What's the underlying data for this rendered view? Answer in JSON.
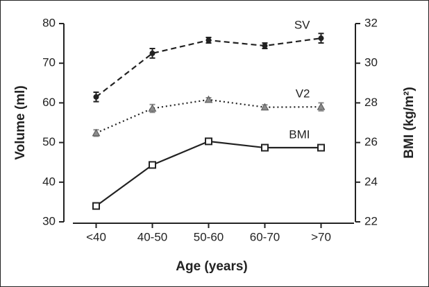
{
  "chart_data": {
    "type": "line",
    "x_label": "Age (years)",
    "y_label": "Volume (ml)",
    "y2_label": "BMI (kg/m²)",
    "categories": [
      "<40",
      "40-50",
      "50-60",
      "60-70",
      ">70"
    ],
    "ylim": [
      30,
      80
    ],
    "yticks": [
      30,
      40,
      50,
      60,
      70,
      80
    ],
    "y2lim": [
      22,
      32
    ],
    "y2ticks": [
      22,
      24,
      26,
      28,
      30,
      32
    ],
    "series": [
      {
        "name": "SV",
        "color": "#222222",
        "dash": "dashed",
        "marker": "circle",
        "values": [
          61.5,
          72.5,
          75.8,
          74.4,
          76.3
        ],
        "errors": [
          1.2,
          1.2,
          0.7,
          0.7,
          1.2
        ]
      },
      {
        "name": "V2",
        "color": "#8c8c8c",
        "dash": "dotted",
        "marker": "triangle",
        "values": [
          52.4,
          58.6,
          60.8,
          58.9,
          59.0
        ],
        "errors": [
          0.8,
          1.0,
          0.5,
          0.6,
          1.0
        ]
      },
      {
        "name": "BMI",
        "color": "#222222",
        "dash": "solid",
        "marker": "square",
        "axis": "y2",
        "values": [
          22.8,
          24.87,
          26.06,
          25.74,
          25.74
        ],
        "errors": [
          0.15,
          0.15,
          0.1,
          0.08,
          0.12
        ]
      }
    ]
  }
}
